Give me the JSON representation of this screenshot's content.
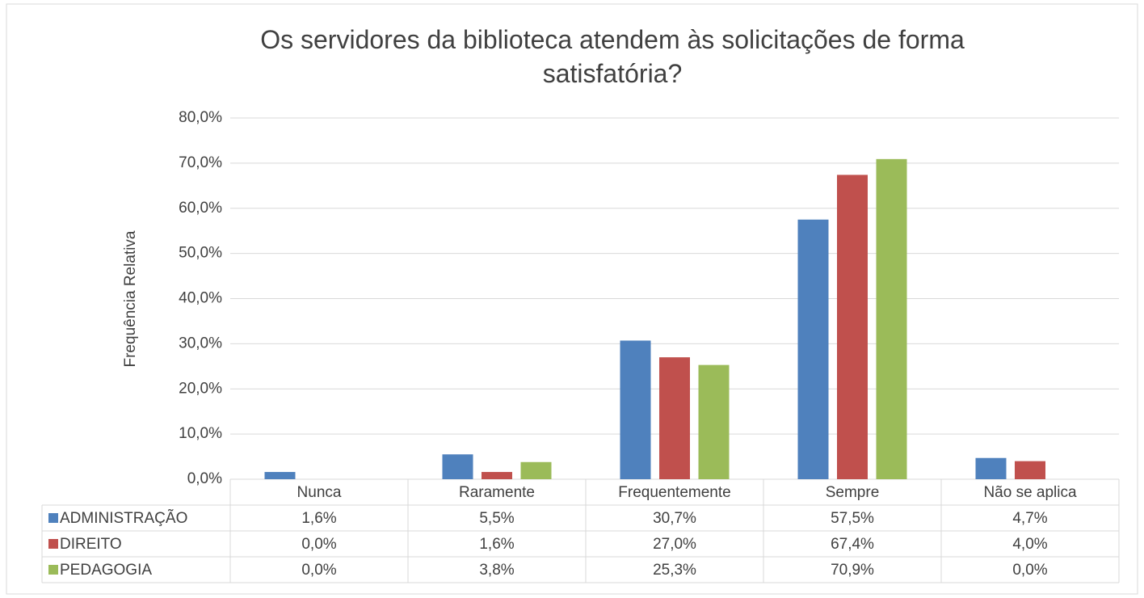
{
  "chart_data": {
    "type": "bar",
    "title": "Os servidores da biblioteca atendem às solicitações de forma satisfatória?",
    "y_label": "Frequência Relativa",
    "categories": [
      "Nunca",
      "Raramente",
      "Frequentemente",
      "Sempre",
      "Não se aplica"
    ],
    "series": [
      {
        "name": "ADMINISTRAÇÃO",
        "color": "#4f81bd",
        "values": [
          1.6,
          5.5,
          30.7,
          57.5,
          4.7
        ],
        "value_labels": [
          "1,6%",
          "5,5%",
          "30,7%",
          "57,5%",
          "4,7%"
        ]
      },
      {
        "name": "DIREITO",
        "color": "#c0504d",
        "values": [
          0.0,
          1.6,
          27.0,
          67.4,
          4.0
        ],
        "value_labels": [
          "0,0%",
          "1,6%",
          "27,0%",
          "67,4%",
          "4,0%"
        ]
      },
      {
        "name": "PEDAGOGIA",
        "color": "#9bbb59",
        "values": [
          0.0,
          3.8,
          25.3,
          70.9,
          0.0
        ],
        "value_labels": [
          "0,0%",
          "3,8%",
          "25,3%",
          "70,9%",
          "0,0%"
        ]
      }
    ],
    "ylim": [
      0,
      80
    ],
    "yticks": [
      {
        "value": 0,
        "label": "0,0%"
      },
      {
        "value": 10,
        "label": "10,0%"
      },
      {
        "value": 20,
        "label": "20,0%"
      },
      {
        "value": 30,
        "label": "30,0%"
      },
      {
        "value": 40,
        "label": "40,0%"
      },
      {
        "value": 50,
        "label": "50,0%"
      },
      {
        "value": 60,
        "label": "60,0%"
      },
      {
        "value": 70,
        "label": "70,0%"
      },
      {
        "value": 80,
        "label": "80,0%"
      }
    ],
    "grid": true
  }
}
